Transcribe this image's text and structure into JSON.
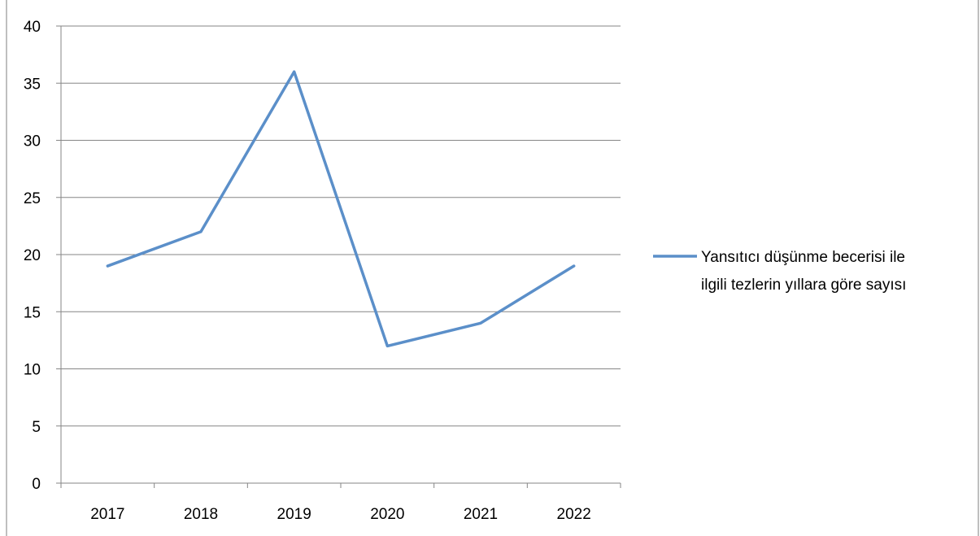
{
  "chart_data": {
    "type": "line",
    "title": "",
    "xlabel": "",
    "ylabel": "",
    "categories": [
      "2017",
      "2018",
      "2019",
      "2020",
      "2021",
      "2022"
    ],
    "series": [
      {
        "name": "Yansıtıcı düşünme becerisi ile ilgili tezlerin yıllara göre sayısı",
        "name_lines": [
          "Yansıtıcı düşünme becerisi ile",
          "ilgili tezlerin yıllara göre sayısı"
        ],
        "values": [
          19,
          22,
          36,
          12,
          14,
          19
        ],
        "color": "#5b8fc9"
      }
    ],
    "ylim": [
      0,
      40
    ],
    "yticks": [
      "0",
      "5",
      "10",
      "15",
      "20",
      "25",
      "30",
      "35",
      "40"
    ],
    "grid": true,
    "legend_position": "right"
  }
}
